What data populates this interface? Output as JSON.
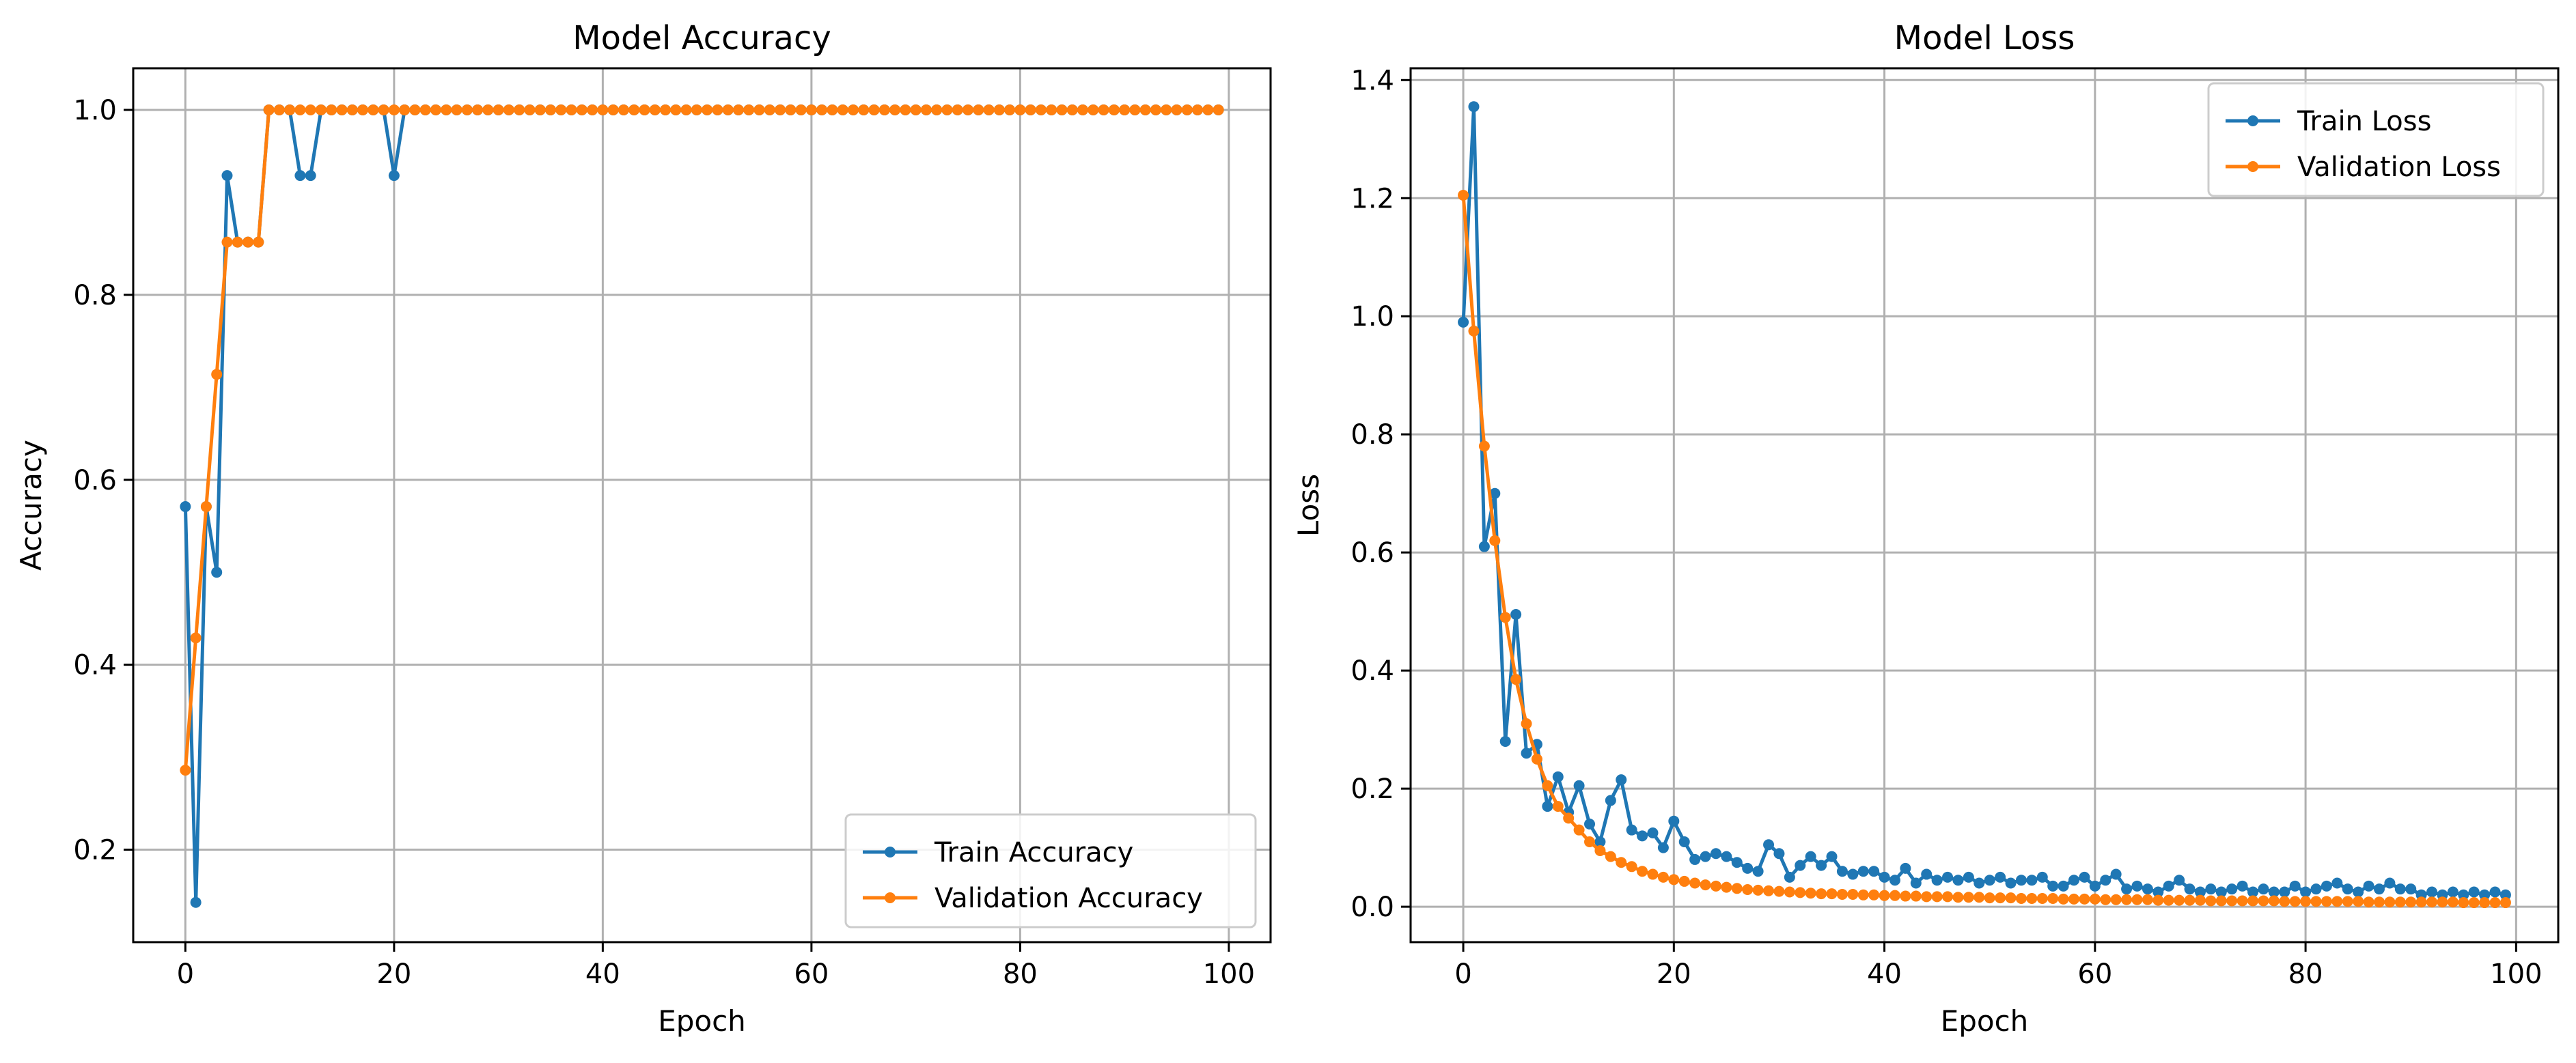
{
  "chart_data": [
    {
      "type": "line",
      "title": "Model Accuracy",
      "xlabel": "Epoch",
      "ylabel": "Accuracy",
      "xlim": [
        -5,
        104
      ],
      "ylim": [
        0.1,
        1.045
      ],
      "xticks": [
        0,
        20,
        40,
        60,
        80,
        100
      ],
      "xtick_labels": [
        "0",
        "20",
        "40",
        "60",
        "80",
        "100"
      ],
      "yticks": [
        0.2,
        0.4,
        0.6,
        0.8,
        1.0
      ],
      "ytick_labels": [
        "0.2",
        "0.4",
        "0.6",
        "0.8",
        "1.0"
      ],
      "grid": true,
      "legend": "lower right",
      "x": [
        0,
        1,
        2,
        3,
        4,
        5,
        6,
        7,
        8,
        9,
        10,
        11,
        12,
        13,
        14,
        15,
        16,
        17,
        18,
        19,
        20,
        21,
        22,
        23,
        24,
        25,
        26,
        27,
        28,
        29,
        30,
        31,
        32,
        33,
        34,
        35,
        36,
        37,
        38,
        39,
        40,
        41,
        42,
        43,
        44,
        45,
        46,
        47,
        48,
        49,
        50,
        51,
        52,
        53,
        54,
        55,
        56,
        57,
        58,
        59,
        60,
        61,
        62,
        63,
        64,
        65,
        66,
        67,
        68,
        69,
        70,
        71,
        72,
        73,
        74,
        75,
        76,
        77,
        78,
        79,
        80,
        81,
        82,
        83,
        84,
        85,
        86,
        87,
        88,
        89,
        90,
        91,
        92,
        93,
        94,
        95,
        96,
        97,
        98,
        99
      ],
      "series": [
        {
          "name": "Train Accuracy",
          "color": "#1f77b4",
          "values": [
            0.571,
            0.143,
            0.571,
            0.5,
            0.929,
            0.857,
            0.857,
            0.857,
            1,
            1,
            1,
            0.929,
            0.929,
            1,
            1,
            1,
            1,
            1,
            1,
            1,
            0.929,
            1,
            1,
            1,
            1,
            1,
            1,
            1,
            1,
            1,
            1,
            1,
            1,
            1,
            1,
            1,
            1,
            1,
            1,
            1,
            1,
            1,
            1,
            1,
            1,
            1,
            1,
            1,
            1,
            1,
            1,
            1,
            1,
            1,
            1,
            1,
            1,
            1,
            1,
            1,
            1,
            1,
            1,
            1,
            1,
            1,
            1,
            1,
            1,
            1,
            1,
            1,
            1,
            1,
            1,
            1,
            1,
            1,
            1,
            1,
            1,
            1,
            1,
            1,
            1,
            1,
            1,
            1,
            1,
            1,
            1,
            1,
            1,
            1,
            1,
            1,
            1,
            1,
            1,
            1
          ]
        },
        {
          "name": "Validation Accuracy",
          "color": "#ff7f0e",
          "values": [
            0.286,
            0.429,
            0.571,
            0.714,
            0.857,
            0.857,
            0.857,
            0.857,
            1,
            1,
            1,
            1,
            1,
            1,
            1,
            1,
            1,
            1,
            1,
            1,
            1,
            1,
            1,
            1,
            1,
            1,
            1,
            1,
            1,
            1,
            1,
            1,
            1,
            1,
            1,
            1,
            1,
            1,
            1,
            1,
            1,
            1,
            1,
            1,
            1,
            1,
            1,
            1,
            1,
            1,
            1,
            1,
            1,
            1,
            1,
            1,
            1,
            1,
            1,
            1,
            1,
            1,
            1,
            1,
            1,
            1,
            1,
            1,
            1,
            1,
            1,
            1,
            1,
            1,
            1,
            1,
            1,
            1,
            1,
            1,
            1,
            1,
            1,
            1,
            1,
            1,
            1,
            1,
            1,
            1,
            1,
            1,
            1,
            1,
            1,
            1,
            1,
            1,
            1,
            1
          ]
        }
      ]
    },
    {
      "type": "line",
      "title": "Model Loss",
      "xlabel": "Epoch",
      "ylabel": "Loss",
      "xlim": [
        -5,
        104
      ],
      "ylim": [
        -0.06,
        1.42
      ],
      "xticks": [
        0,
        20,
        40,
        60,
        80,
        100
      ],
      "xtick_labels": [
        "0",
        "20",
        "40",
        "60",
        "80",
        "100"
      ],
      "yticks": [
        0.0,
        0.2,
        0.4,
        0.6,
        0.8,
        1.0,
        1.2,
        1.4
      ],
      "ytick_labels": [
        "0.0",
        "0.2",
        "0.4",
        "0.6",
        "0.8",
        "1.0",
        "1.2",
        "1.4"
      ],
      "grid": true,
      "legend": "upper right",
      "x": [
        0,
        1,
        2,
        3,
        4,
        5,
        6,
        7,
        8,
        9,
        10,
        11,
        12,
        13,
        14,
        15,
        16,
        17,
        18,
        19,
        20,
        21,
        22,
        23,
        24,
        25,
        26,
        27,
        28,
        29,
        30,
        31,
        32,
        33,
        34,
        35,
        36,
        37,
        38,
        39,
        40,
        41,
        42,
        43,
        44,
        45,
        46,
        47,
        48,
        49,
        50,
        51,
        52,
        53,
        54,
        55,
        56,
        57,
        58,
        59,
        60,
        61,
        62,
        63,
        64,
        65,
        66,
        67,
        68,
        69,
        70,
        71,
        72,
        73,
        74,
        75,
        76,
        77,
        78,
        79,
        80,
        81,
        82,
        83,
        84,
        85,
        86,
        87,
        88,
        89,
        90,
        91,
        92,
        93,
        94,
        95,
        96,
        97,
        98,
        99
      ],
      "series": [
        {
          "name": "Train Loss",
          "color": "#1f77b4",
          "values": [
            0.99,
            1.355,
            0.61,
            0.7,
            0.28,
            0.495,
            0.26,
            0.275,
            0.17,
            0.22,
            0.16,
            0.205,
            0.14,
            0.11,
            0.18,
            0.215,
            0.13,
            0.12,
            0.125,
            0.1,
            0.145,
            0.11,
            0.08,
            0.085,
            0.09,
            0.085,
            0.075,
            0.065,
            0.06,
            0.105,
            0.09,
            0.05,
            0.07,
            0.085,
            0.07,
            0.085,
            0.06,
            0.055,
            0.06,
            0.06,
            0.05,
            0.045,
            0.065,
            0.04,
            0.055,
            0.045,
            0.05,
            0.045,
            0.05,
            0.04,
            0.045,
            0.05,
            0.04,
            0.045,
            0.045,
            0.05,
            0.035,
            0.035,
            0.045,
            0.05,
            0.035,
            0.045,
            0.055,
            0.03,
            0.035,
            0.03,
            0.025,
            0.035,
            0.045,
            0.03,
            0.025,
            0.03,
            0.025,
            0.03,
            0.035,
            0.025,
            0.03,
            0.025,
            0.025,
            0.035,
            0.025,
            0.03,
            0.035,
            0.04,
            0.03,
            0.025,
            0.035,
            0.03,
            0.04,
            0.03,
            0.03,
            0.02,
            0.025,
            0.02,
            0.025,
            0.02,
            0.025,
            0.02,
            0.025,
            0.02
          ]
        },
        {
          "name": "Validation Loss",
          "color": "#ff7f0e",
          "values": [
            1.205,
            0.975,
            0.78,
            0.62,
            0.49,
            0.385,
            0.31,
            0.25,
            0.205,
            0.17,
            0.15,
            0.13,
            0.11,
            0.095,
            0.085,
            0.075,
            0.068,
            0.06,
            0.055,
            0.05,
            0.046,
            0.043,
            0.04,
            0.037,
            0.035,
            0.033,
            0.031,
            0.029,
            0.028,
            0.027,
            0.026,
            0.025,
            0.024,
            0.023,
            0.022,
            0.022,
            0.021,
            0.021,
            0.02,
            0.02,
            0.019,
            0.019,
            0.018,
            0.018,
            0.017,
            0.017,
            0.017,
            0.016,
            0.016,
            0.016,
            0.015,
            0.015,
            0.015,
            0.014,
            0.014,
            0.014,
            0.014,
            0.013,
            0.013,
            0.013,
            0.013,
            0.012,
            0.012,
            0.012,
            0.012,
            0.012,
            0.011,
            0.011,
            0.011,
            0.011,
            0.011,
            0.01,
            0.01,
            0.01,
            0.01,
            0.01,
            0.01,
            0.01,
            0.009,
            0.009,
            0.009,
            0.009,
            0.009,
            0.009,
            0.009,
            0.009,
            0.008,
            0.008,
            0.008,
            0.008,
            0.008,
            0.008,
            0.008,
            0.008,
            0.008,
            0.007,
            0.007,
            0.007,
            0.007,
            0.007
          ]
        }
      ]
    }
  ]
}
